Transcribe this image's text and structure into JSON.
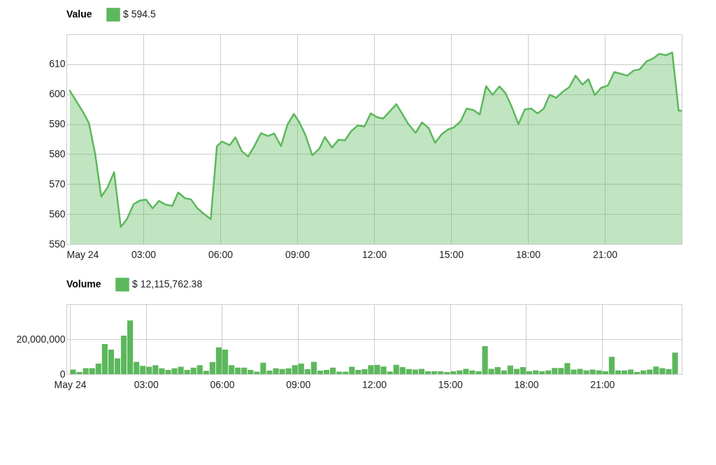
{
  "chart_data": [
    {
      "type": "area",
      "legend_title": "Value",
      "legend": "top left",
      "grid": true,
      "xlim": [
        0,
        24
      ],
      "xticks": [
        {
          "value": 0,
          "label": "May 24"
        },
        {
          "value": 3,
          "label": "03:00"
        },
        {
          "value": 6,
          "label": "06:00"
        },
        {
          "value": 9,
          "label": "09:00"
        },
        {
          "value": 12,
          "label": "12:00"
        },
        {
          "value": 15,
          "label": "15:00"
        },
        {
          "value": 18,
          "label": "18:00"
        },
        {
          "value": 21,
          "label": "21:00"
        }
      ],
      "ylim": [
        550,
        620
      ],
      "yticks": [
        550,
        560,
        570,
        580,
        590,
        600,
        610
      ],
      "x": [
        0.13,
        0.65,
        0.88,
        1.12,
        1.36,
        1.61,
        1.86,
        2.12,
        2.36,
        2.62,
        2.86,
        3.11,
        3.36,
        3.61,
        3.86,
        4.13,
        4.36,
        4.63,
        4.86,
        5.11,
        5.36,
        5.63,
        5.87,
        6.07,
        6.37,
        6.59,
        6.84,
        7.09,
        7.33,
        7.59,
        7.87,
        8.1,
        8.37,
        8.62,
        8.87,
        9.09,
        9.33,
        9.59,
        9.87,
        10.08,
        10.36,
        10.61,
        10.86,
        11.11,
        11.37,
        11.62,
        11.87,
        12.13,
        12.36,
        12.87,
        13.34,
        13.62,
        13.87,
        14.13,
        14.38,
        14.63,
        14.88,
        15.11,
        15.38,
        15.61,
        15.88,
        16.12,
        16.37,
        16.62,
        16.89,
        17.13,
        17.38,
        17.63,
        17.88,
        18.13,
        18.37,
        18.61,
        18.85,
        19.1,
        19.36,
        19.62,
        19.86,
        20.13,
        20.36,
        20.61,
        20.85,
        21.12,
        21.37,
        21.62,
        21.87,
        22.13,
        22.36,
        22.63,
        22.88,
        23.13,
        23.38,
        23.63,
        23.88,
        24
      ],
      "series": [
        {
          "name": "$ 594.5",
          "color": "#5cb85c",
          "values": [
            601.2,
            594.0,
            590.3,
            580.1,
            565.8,
            569.0,
            574.0,
            555.7,
            558.3,
            563.3,
            564.5,
            564.8,
            561.9,
            564.4,
            563.2,
            562.7,
            567.2,
            565.3,
            564.9,
            561.9,
            560.1,
            558.3,
            582.7,
            584.2,
            583.0,
            585.6,
            581.0,
            579.2,
            582.7,
            587.0,
            586.0,
            586.9,
            582.7,
            589.8,
            593.4,
            590.6,
            586.2,
            579.6,
            581.9,
            585.7,
            582.2,
            584.8,
            584.6,
            587.7,
            589.6,
            589.2,
            593.6,
            592.3,
            591.9,
            596.7,
            590.0,
            587.1,
            590.6,
            588.7,
            583.8,
            586.6,
            588.2,
            588.9,
            591.0,
            595.2,
            594.7,
            593.2,
            602.7,
            599.8,
            602.6,
            600.3,
            595.6,
            590.0,
            594.9,
            595.2,
            593.6,
            595.1,
            599.8,
            598.8,
            600.8,
            602.4,
            606.2,
            603.2,
            605.0,
            599.7,
            602.1,
            602.9,
            607.4,
            606.8,
            606.2,
            607.9,
            608.3,
            611.0,
            611.9,
            613.5,
            613.0,
            613.9,
            594.5,
            594.5
          ]
        }
      ]
    },
    {
      "type": "bar",
      "legend_title": "Volume",
      "legend": "top left",
      "grid": true,
      "xlim": [
        0,
        24
      ],
      "xticks": [
        {
          "value": 0,
          "label": "May 24"
        },
        {
          "value": 3,
          "label": "03:00"
        },
        {
          "value": 6,
          "label": "06:00"
        },
        {
          "value": 9,
          "label": "09:00"
        },
        {
          "value": 12,
          "label": "12:00"
        },
        {
          "value": 15,
          "label": "15:00"
        },
        {
          "value": 18,
          "label": "18:00"
        },
        {
          "value": 21,
          "label": "21:00"
        }
      ],
      "ylim": [
        0,
        40000000
      ],
      "yticks": [
        0,
        {
          "value": 20000000,
          "label": "20,000,000"
        }
      ],
      "x": [
        0.125,
        0.375,
        0.625,
        0.875,
        1.125,
        1.375,
        1.625,
        1.875,
        2.125,
        2.375,
        2.625,
        2.875,
        3.125,
        3.375,
        3.625,
        3.875,
        4.125,
        4.375,
        4.625,
        4.875,
        5.125,
        5.375,
        5.625,
        5.875,
        6.125,
        6.375,
        6.625,
        6.875,
        7.125,
        7.375,
        7.625,
        7.875,
        8.125,
        8.375,
        8.625,
        8.875,
        9.125,
        9.375,
        9.625,
        9.875,
        10.125,
        10.375,
        10.625,
        10.875,
        11.125,
        11.375,
        11.625,
        11.875,
        12.125,
        12.375,
        12.625,
        12.875,
        13.125,
        13.375,
        13.625,
        13.875,
        14.125,
        14.375,
        14.625,
        14.875,
        15.125,
        15.375,
        15.625,
        15.875,
        16.125,
        16.375,
        16.625,
        16.875,
        17.125,
        17.375,
        17.625,
        17.875,
        18.125,
        18.375,
        18.625,
        18.875,
        19.125,
        19.375,
        19.625,
        19.875,
        20.125,
        20.375,
        20.625,
        20.875,
        21.125,
        21.375,
        21.625,
        21.875,
        22.125,
        22.375,
        22.625,
        22.875,
        23.125,
        23.375,
        23.625,
        23.875
      ],
      "series": [
        {
          "name": "$ 12,115,762.38",
          "color": "#5cb85c",
          "values": [
            2600000,
            1200000,
            3400000,
            3400000,
            6000000,
            17200000,
            14000000,
            9000000,
            22000000,
            30700000,
            7000000,
            4700000,
            4200000,
            5100000,
            3300000,
            2400000,
            3300000,
            4200000,
            2400000,
            3700000,
            5100000,
            1900000,
            6900000,
            15300000,
            14000000,
            5100000,
            3700000,
            3700000,
            2400000,
            1400000,
            6500000,
            2000000,
            3300000,
            2900000,
            3300000,
            5100000,
            6000000,
            2800000,
            7000000,
            2000000,
            2400000,
            3700000,
            1400000,
            1400000,
            4200000,
            2400000,
            2800000,
            5100000,
            5300000,
            4300000,
            1500000,
            5300000,
            4000000,
            2900000,
            2600000,
            3000000,
            1600000,
            1600000,
            1600000,
            1200000,
            1600000,
            2100000,
            3000000,
            2100000,
            1600000,
            16000000,
            3000000,
            4000000,
            2100000,
            4900000,
            3000000,
            4000000,
            1600000,
            2100000,
            1600000,
            2100000,
            3500000,
            3500000,
            6300000,
            2600000,
            3000000,
            2100000,
            2600000,
            2100000,
            1600000,
            9900000,
            2100000,
            2100000,
            2600000,
            1200000,
            2100000,
            2600000,
            4300000,
            3400000,
            2900000,
            12300000
          ]
        }
      ]
    }
  ]
}
